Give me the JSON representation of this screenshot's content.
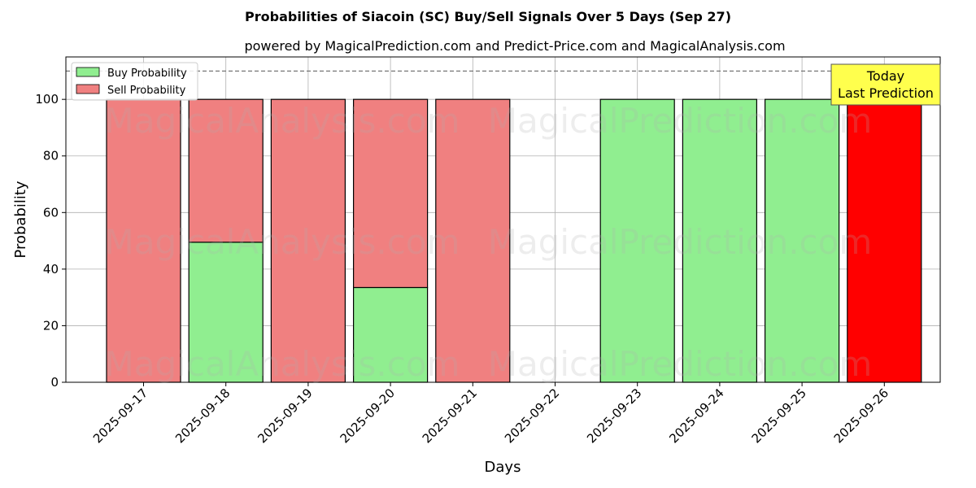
{
  "chart_data": {
    "type": "bar",
    "stacked": true,
    "title": "Probabilities of Siacoin (SC) Buy/Sell Signals Over 5 Days (Sep 27)",
    "subtitle": "powered by MagicalPrediction.com and Predict-Price.com and MagicalAnalysis.com",
    "xlabel": "Days",
    "ylabel": "Probability",
    "ylim": [
      0,
      115
    ],
    "yticks": [
      0,
      20,
      40,
      60,
      80,
      100
    ],
    "reference_line": 110,
    "grid": true,
    "legend_position": "top-left",
    "categories": [
      "2025-09-17",
      "2025-09-18",
      "2025-09-19",
      "2025-09-20",
      "2025-09-21",
      "2025-09-22",
      "2025-09-23",
      "2025-09-24",
      "2025-09-25",
      "2025-09-26"
    ],
    "series": [
      {
        "name": "Buy Probability",
        "color": "#90ee90",
        "values": [
          0,
          49.5,
          0,
          33.5,
          0,
          0,
          100,
          100,
          100,
          0
        ]
      },
      {
        "name": "Sell Probability",
        "color": "#f08080",
        "values": [
          100,
          50.5,
          100,
          66.5,
          100,
          0,
          0,
          0,
          0,
          100
        ]
      }
    ],
    "highlight": {
      "category": "2025-09-26",
      "color": "#ff0000",
      "line1": "Today",
      "line2": "Last Prediction",
      "box_color": "#ffff4d"
    },
    "watermarks": [
      "MagicalAnalysis.com",
      "MagicalPrediction.com"
    ]
  }
}
